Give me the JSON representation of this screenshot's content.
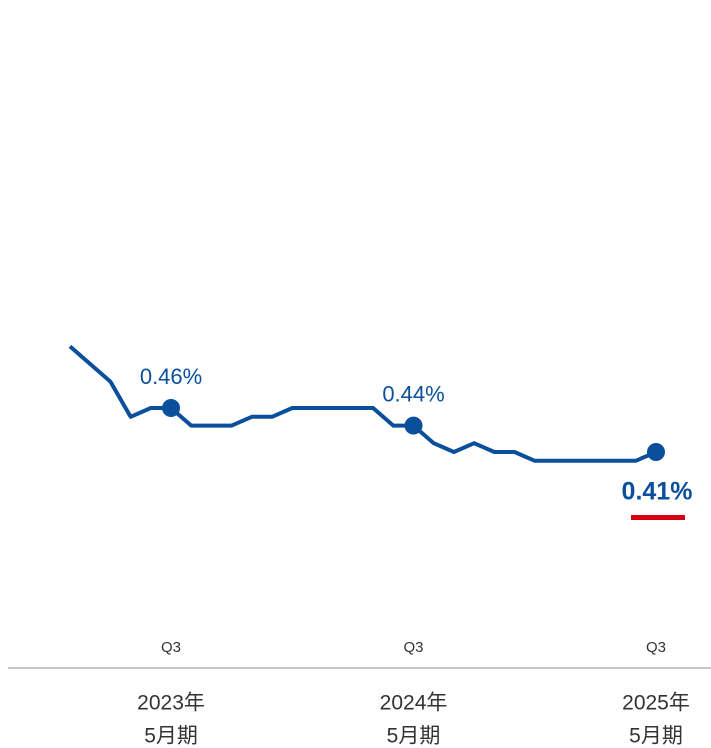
{
  "chart_data": {
    "type": "line",
    "categories": [
      null,
      null,
      null,
      null,
      null,
      "Q3",
      null,
      null,
      null,
      null,
      null,
      null,
      null,
      null,
      null,
      null,
      null,
      "Q3",
      null,
      null,
      null,
      null,
      null,
      null,
      null,
      null,
      null,
      null,
      null,
      "Q3"
    ],
    "series": [
      {
        "color": "#0a4f9c",
        "values": [
          0.53,
          0.51,
          0.49,
          0.45,
          0.46,
          0.46,
          0.44,
          0.44,
          0.44,
          0.45,
          0.45,
          0.46,
          0.46,
          0.46,
          0.46,
          0.46,
          0.44,
          0.44,
          0.42,
          0.41,
          0.42,
          0.41,
          0.41,
          0.4,
          0.4,
          0.4,
          0.4,
          0.4,
          0.4,
          0.41
        ],
        "value_labels": [
          null,
          null,
          null,
          null,
          null,
          "0.46%",
          null,
          null,
          null,
          null,
          null,
          null,
          null,
          null,
          null,
          null,
          null,
          "0.44%",
          null,
          null,
          null,
          null,
          null,
          null,
          null,
          null,
          null,
          null,
          null,
          "0.41%"
        ]
      }
    ],
    "fiscal_years": [
      {
        "year": "2023年",
        "period": "5月期"
      },
      {
        "year": "2024年",
        "period": "5月期"
      },
      {
        "year": "2025年",
        "period": "5月期"
      }
    ],
    "ylim": [
      0.35,
      0.55
    ],
    "highlight_color": "#d7000f"
  }
}
